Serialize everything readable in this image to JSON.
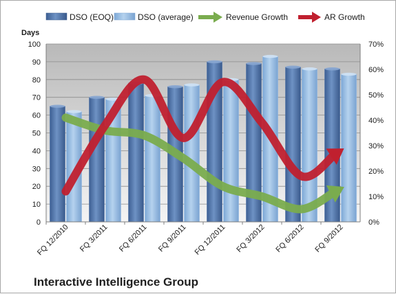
{
  "colors": {
    "dso_eoq": "#4f73a8",
    "dso_average": "#8fb8e3",
    "revenue_growth": "#7aac4e",
    "ar_growth": "#c0202f"
  },
  "chart_data": {
    "type": "bar",
    "title": "Interactive Intelligence Group",
    "ylabel": "Days",
    "categories": [
      "FQ 12/2010",
      "FQ 3/2011",
      "FQ 6/2011",
      "FQ 9/2011",
      "FQ 12/2011",
      "FQ 3/2012",
      "FQ 6/2012",
      "FQ 9/2012"
    ],
    "ylim": [
      0,
      100
    ],
    "y_ticks": [
      "0",
      "10",
      "20",
      "30",
      "40",
      "50",
      "60",
      "70",
      "80",
      "90",
      "100"
    ],
    "y2lim": [
      0,
      0.7
    ],
    "y2_ticks": [
      "0%",
      "10%",
      "20%",
      "30%",
      "40%",
      "50%",
      "60%",
      "70%"
    ],
    "grid": true,
    "legend_position": "top",
    "series": [
      {
        "name": "DSO (EOQ)",
        "type": "bar",
        "axis": "left",
        "values": [
          65,
          70,
          78,
          76,
          90,
          89,
          87,
          86
        ]
      },
      {
        "name": "DSO (average)",
        "type": "bar",
        "axis": "left",
        "values": [
          62,
          69,
          71,
          77,
          80,
          93,
          86,
          83
        ]
      },
      {
        "name": "Revenue Growth",
        "type": "line-arrow",
        "axis": "right",
        "values": [
          0.41,
          0.36,
          0.34,
          0.25,
          0.14,
          0.1,
          0.05,
          0.13
        ]
      },
      {
        "name": "AR Growth",
        "type": "line-arrow",
        "axis": "right",
        "values": [
          0.12,
          0.38,
          0.56,
          0.33,
          0.55,
          0.39,
          0.18,
          0.28
        ]
      }
    ]
  }
}
